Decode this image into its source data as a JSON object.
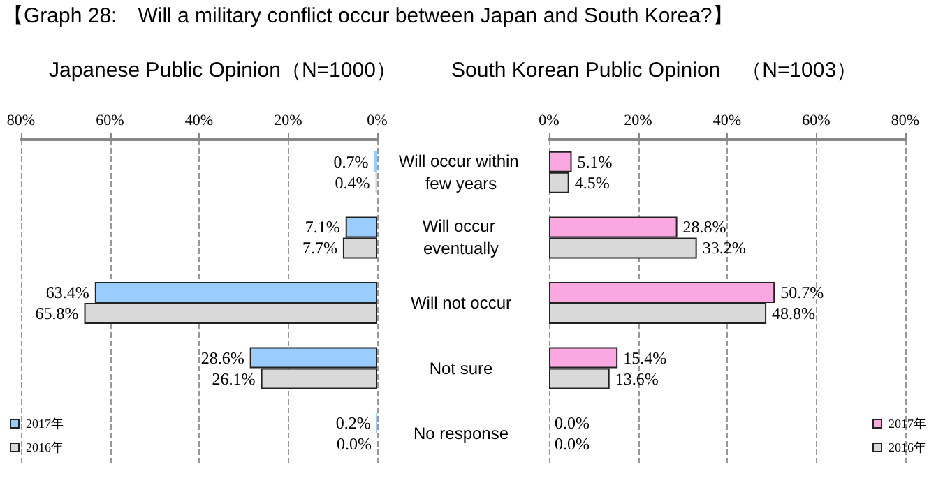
{
  "chart_data": [
    {
      "type": "bar",
      "orientation": "horizontal",
      "title": "【Graph 28:　Will a military conflict occur between Japan and South Korea?】",
      "subtitle": "Japanese Public Opinion（N=1000）",
      "categories": [
        "Will occur within few years",
        "Will occur eventually",
        "Will not occur",
        "Not sure",
        "No response"
      ],
      "series": [
        {
          "name": "2017年",
          "color": "#99ccff",
          "values": [
            0.7,
            7.1,
            63.4,
            28.6,
            0.2
          ],
          "value_labels": [
            "0.7%",
            "7.1%",
            "63.4%",
            "28.6%",
            "0.2%"
          ]
        },
        {
          "name": "2016年",
          "color": "#d9d9d9",
          "values": [
            0.4,
            7.7,
            65.8,
            26.1,
            0.0
          ],
          "value_labels": [
            "0.4%",
            "7.7%",
            "65.8%",
            "26.1%",
            "0.0%"
          ]
        }
      ],
      "xlim": [
        80,
        0
      ],
      "xticks": [
        {
          "value": 80,
          "label": "80%"
        },
        {
          "value": 60,
          "label": "60%"
        },
        {
          "value": 40,
          "label": "40%"
        },
        {
          "value": 20,
          "label": "20%"
        },
        {
          "value": 0,
          "label": "0%"
        }
      ],
      "grid": "x",
      "legend": "bottom left"
    },
    {
      "type": "bar",
      "orientation": "horizontal",
      "title": "South Korean Public Opinion　（N=1003）",
      "categories": [
        "Will occur within few years",
        "Will occur eventually",
        "Will not occur",
        "Not sure",
        "No response"
      ],
      "series": [
        {
          "name": "2017年",
          "color": "#f9a8e0",
          "values": [
            5.1,
            28.8,
            50.7,
            15.4,
            0.0
          ],
          "value_labels": [
            "5.1%",
            "28.8%",
            "50.7%",
            "15.4%",
            "0.0%"
          ]
        },
        {
          "name": "2016年",
          "color": "#d9d9d9",
          "values": [
            4.5,
            33.2,
            48.8,
            13.6,
            0.0
          ],
          "value_labels": [
            "4.5%",
            "33.2%",
            "48.8%",
            "13.6%",
            "0.0%"
          ]
        }
      ],
      "xlim": [
        0,
        80
      ],
      "xticks": [
        {
          "value": 0,
          "label": "0%"
        },
        {
          "value": 20,
          "label": "20%"
        },
        {
          "value": 40,
          "label": "40%"
        },
        {
          "value": 60,
          "label": "60%"
        },
        {
          "value": 80,
          "label": "80%"
        }
      ],
      "grid": "x",
      "legend": "bottom right",
      "tick_labels": "x"
    }
  ]
}
